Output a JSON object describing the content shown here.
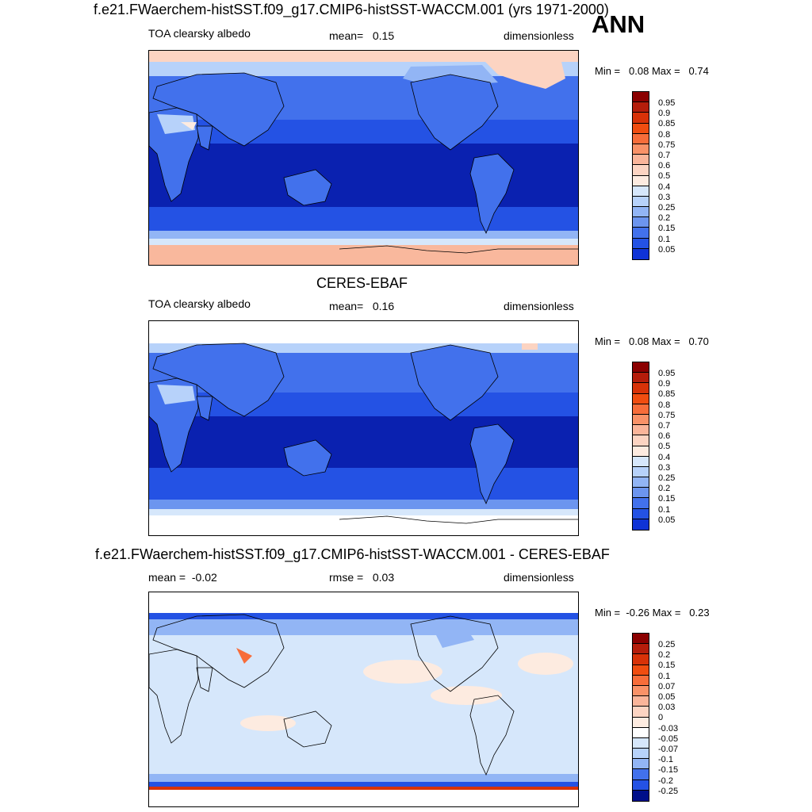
{
  "header": {
    "top_title": "f.e21.FWaerchem-histSST.f09_g17.CMIP6-histSST-WACCM.001 (yrs 1971-2000)",
    "season": "ANN"
  },
  "panels": [
    {
      "variable": "TOA clearsky albedo",
      "stat1_label": "mean=",
      "stat1_value": "0.15",
      "units": "dimensionless",
      "min_label": "Min =",
      "min_value": "0.08",
      "max_label": "Max =",
      "max_value": "0.74",
      "colorbar_ticks": [
        "0.95",
        "0.9",
        "0.85",
        "0.8",
        "0.75",
        "0.7",
        "0.6",
        "0.5",
        "0.4",
        "0.3",
        "0.25",
        "0.2",
        "0.15",
        "0.1",
        "0.05"
      ]
    },
    {
      "title": "CERES-EBAF",
      "variable": "TOA clearsky albedo",
      "stat1_label": "mean=",
      "stat1_value": "0.16",
      "units": "dimensionless",
      "min_label": "Min =",
      "min_value": "0.08",
      "max_label": "Max =",
      "max_value": "0.70",
      "colorbar_ticks": [
        "0.95",
        "0.9",
        "0.85",
        "0.8",
        "0.75",
        "0.7",
        "0.6",
        "0.5",
        "0.4",
        "0.3",
        "0.25",
        "0.2",
        "0.15",
        "0.1",
        "0.05"
      ]
    },
    {
      "title": "f.e21.FWaerchem-histSST.f09_g17.CMIP6-histSST-WACCM.001 - CERES-EBAF",
      "stat1_label": "mean =",
      "stat1_value": "-0.02",
      "stat2_label": "rmse =",
      "stat2_value": "0.03",
      "units": "dimensionless",
      "min_label": "Min =",
      "min_value": "-0.26",
      "max_label": "Max =",
      "max_value": "0.23",
      "colorbar_ticks": [
        "0.25",
        "0.2",
        "0.15",
        "0.1",
        "0.07",
        "0.05",
        "0.03",
        "0",
        "-0.03",
        "-0.05",
        "-0.07",
        "-0.1",
        "-0.15",
        "-0.2",
        "-0.25"
      ]
    }
  ],
  "colors": {
    "abs_palette": [
      "#8b0000",
      "#b51d0b",
      "#d83208",
      "#f04d10",
      "#f76d3a",
      "#f99268",
      "#fab59a",
      "#fcd4c2",
      "#fdebe0",
      "#d6e7fb",
      "#b7d2fa",
      "#92b5f5",
      "#6c95ef",
      "#4271ec",
      "#2452e4",
      "#0f33d6",
      "#0a21b0",
      "#000f8a"
    ],
    "diff_palette": [
      "#8b0000",
      "#b51d0b",
      "#d83208",
      "#f04d10",
      "#f76d3a",
      "#f99268",
      "#fab59a",
      "#fcd4c2",
      "#fdebe0",
      "#d6e7fb",
      "#b7d2fa",
      "#92b5f5",
      "#6c95ef",
      "#4271ec",
      "#2452e4",
      "#0f33d6",
      "#000f8a"
    ]
  }
}
